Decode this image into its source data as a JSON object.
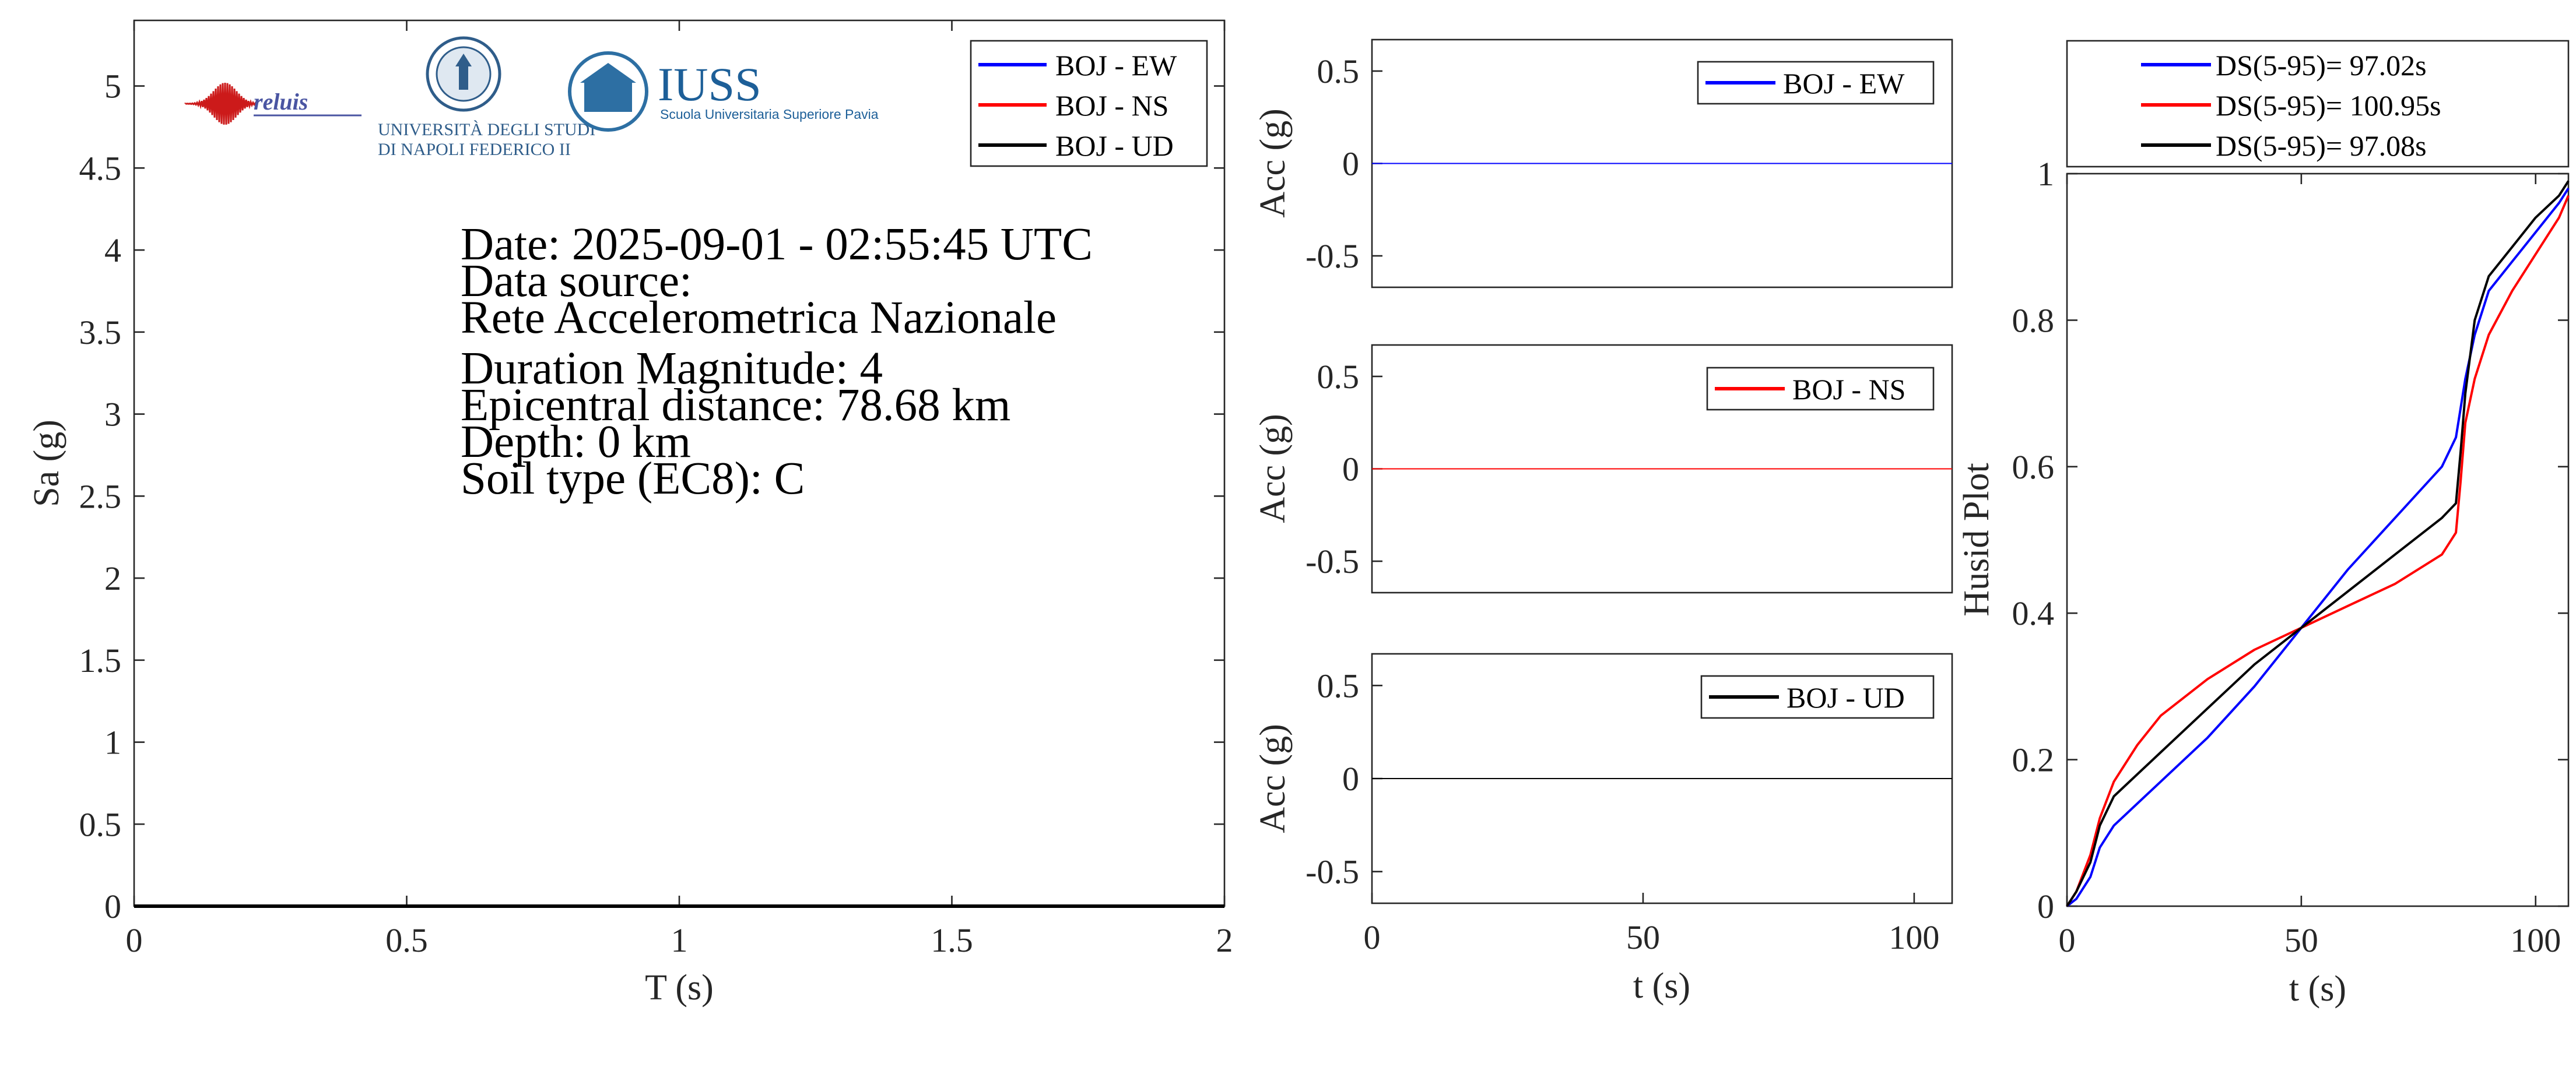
{
  "colors": {
    "ew": "#0000ff",
    "ns": "#ff0000",
    "ud": "#000000",
    "axis": "#262626"
  },
  "info_lines": [
    "Date: 2025-09-01 - 02:55:45 UTC",
    "Data source:",
    "Rete Accelerometrica Nazionale",
    "Duration Magnitude: 4",
    "Epicentral distance: 78.68 km",
    "Depth: 0 km",
    "Soil type (EC8): C"
  ],
  "logos": {
    "reluis": "reluis",
    "unina_line1": "UNIVERSITÀ DEGLI STUDI",
    "unina_line2": "DI NAPOLI FEDERICO II",
    "iuss_title": "IUSS",
    "iuss_subtitle": "Scuola Universitaria Superiore Pavia"
  },
  "chart_data": [
    {
      "type": "line",
      "panel": "spectrum",
      "xlabel": "T (s)",
      "ylabel": "Sa (g)",
      "xlim": [
        0,
        2
      ],
      "ylim": [
        0,
        5.4
      ],
      "xticks": [
        0,
        0.5,
        1,
        1.5,
        2
      ],
      "xtick_labels": [
        "0",
        "0.5",
        "1",
        "1.5",
        "2"
      ],
      "yticks": [
        0,
        0.5,
        1,
        1.5,
        2,
        2.5,
        3,
        3.5,
        4,
        4.5,
        5
      ],
      "ytick_labels": [
        "0",
        "0.5",
        "1",
        "1.5",
        "2",
        "2.5",
        "3",
        "3.5",
        "4",
        "4.5",
        "5"
      ],
      "legend": [
        "BOJ - EW",
        "BOJ - NS",
        "BOJ - UD"
      ],
      "legend_position": "top-right",
      "series": [
        {
          "name": "BOJ - EW",
          "color": "#0000ff",
          "x": [
            0,
            2
          ],
          "y": [
            0,
            0
          ]
        },
        {
          "name": "BOJ - NS",
          "color": "#ff0000",
          "x": [
            0,
            2
          ],
          "y": [
            0,
            0
          ]
        },
        {
          "name": "BOJ - UD",
          "color": "#000000",
          "x": [
            0,
            2
          ],
          "y": [
            0,
            0
          ]
        }
      ]
    },
    {
      "type": "line",
      "panel": "acc-ew",
      "xlabel": "",
      "ylabel": "Acc (g)",
      "xlim": [
        0,
        107
      ],
      "ylim": [
        -0.67,
        0.67
      ],
      "xticks": [],
      "xtick_labels": [],
      "yticks": [
        -0.5,
        0,
        0.5
      ],
      "ytick_labels": [
        "-0.5",
        "0",
        "0.5"
      ],
      "legend": [
        "BOJ - EW"
      ],
      "legend_position": "top-right",
      "series": [
        {
          "name": "BOJ - EW",
          "color": "#0000ff",
          "x": [
            0,
            107
          ],
          "y": [
            0,
            0
          ]
        }
      ]
    },
    {
      "type": "line",
      "panel": "acc-ns",
      "xlabel": "",
      "ylabel": "Acc (g)",
      "xlim": [
        0,
        107
      ],
      "ylim": [
        -0.67,
        0.67
      ],
      "xticks": [],
      "xtick_labels": [],
      "yticks": [
        -0.5,
        0,
        0.5
      ],
      "ytick_labels": [
        "-0.5",
        "0",
        "0.5"
      ],
      "legend": [
        "BOJ - NS"
      ],
      "legend_position": "top-right",
      "series": [
        {
          "name": "BOJ - NS",
          "color": "#ff0000",
          "x": [
            0,
            107
          ],
          "y": [
            0,
            0
          ]
        }
      ]
    },
    {
      "type": "line",
      "panel": "acc-ud",
      "xlabel": "t (s)",
      "ylabel": "Acc (g)",
      "xlim": [
        0,
        107
      ],
      "ylim": [
        -0.67,
        0.67
      ],
      "xticks": [
        0,
        50,
        100
      ],
      "xtick_labels": [
        "0",
        "50",
        "100"
      ],
      "yticks": [
        -0.5,
        0,
        0.5
      ],
      "ytick_labels": [
        "-0.5",
        "0",
        "0.5"
      ],
      "legend": [
        "BOJ - UD"
      ],
      "legend_position": "top-right",
      "series": [
        {
          "name": "BOJ - UD",
          "color": "#000000",
          "x": [
            0,
            107
          ],
          "y": [
            0,
            0
          ]
        }
      ]
    },
    {
      "type": "line",
      "panel": "husid",
      "xlabel": "t (s)",
      "ylabel": "Husid Plot",
      "xlim": [
        0,
        107
      ],
      "ylim": [
        0,
        1
      ],
      "xticks": [
        0,
        50,
        100
      ],
      "xtick_labels": [
        "0",
        "50",
        "100"
      ],
      "yticks": [
        0,
        0.2,
        0.4,
        0.6,
        0.8,
        1
      ],
      "ytick_labels": [
        "0",
        "0.2",
        "0.4",
        "0.6",
        "0.8",
        "1"
      ],
      "legend": [
        "DS(5-95)= 97.02s",
        "DS(5-95)= 100.95s",
        "DS(5-95)= 97.08s"
      ],
      "legend_position": "top-outside",
      "series": [
        {
          "name": "DS(5-95)= 97.02s",
          "color": "#0000ff",
          "x": [
            0,
            2,
            5,
            7,
            10,
            20,
            30,
            40,
            50,
            60,
            70,
            80,
            83,
            85,
            87,
            90,
            95,
            100,
            105,
            107
          ],
          "y": [
            0,
            0.01,
            0.04,
            0.08,
            0.11,
            0.17,
            0.23,
            0.3,
            0.38,
            0.46,
            0.53,
            0.6,
            0.64,
            0.72,
            0.78,
            0.84,
            0.88,
            0.92,
            0.96,
            0.98
          ]
        },
        {
          "name": "DS(5-95)= 100.95s",
          "color": "#ff0000",
          "x": [
            0,
            2,
            5,
            7,
            10,
            15,
            20,
            30,
            40,
            50,
            60,
            70,
            80,
            83,
            84,
            85,
            87,
            90,
            95,
            100,
            105,
            107
          ],
          "y": [
            0,
            0.02,
            0.07,
            0.12,
            0.17,
            0.22,
            0.26,
            0.31,
            0.35,
            0.38,
            0.41,
            0.44,
            0.48,
            0.51,
            0.58,
            0.66,
            0.72,
            0.78,
            0.84,
            0.89,
            0.94,
            0.97
          ]
        },
        {
          "name": "DS(5-95)= 97.08s",
          "color": "#000000",
          "x": [
            0,
            2,
            5,
            7,
            10,
            20,
            30,
            40,
            50,
            60,
            70,
            80,
            83,
            84,
            85,
            87,
            90,
            95,
            100,
            105,
            107
          ],
          "y": [
            0,
            0.02,
            0.06,
            0.11,
            0.15,
            0.21,
            0.27,
            0.33,
            0.38,
            0.43,
            0.48,
            0.53,
            0.55,
            0.62,
            0.7,
            0.8,
            0.86,
            0.9,
            0.94,
            0.97,
            0.99
          ]
        }
      ]
    }
  ]
}
